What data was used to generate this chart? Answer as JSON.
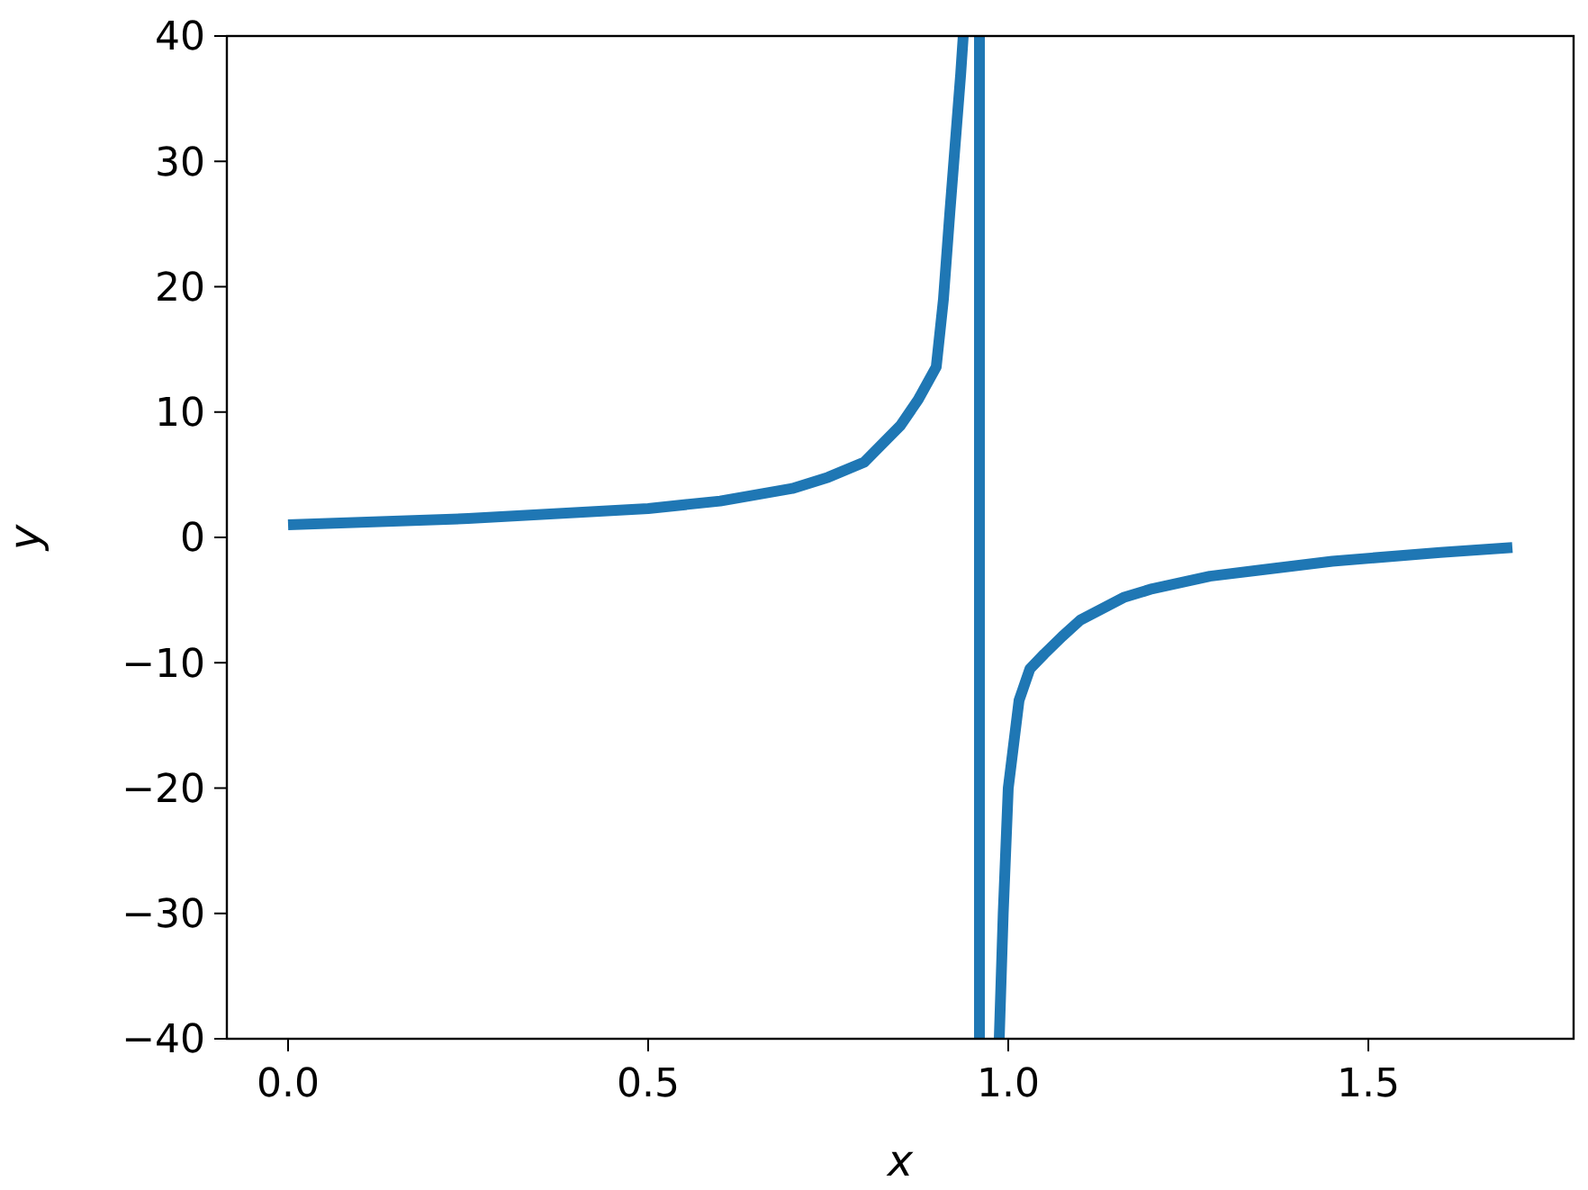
{
  "chart_data": {
    "type": "line",
    "xlabel": "x",
    "ylabel": "y",
    "x": [
      0,
      0.25,
      0.5,
      0.6,
      0.7,
      0.75,
      0.8,
      0.85,
      0.875,
      0.9,
      0.91,
      0.919,
      0.934,
      0.9375,
      0.95,
      0.96,
      0.96,
      0.97,
      0.9875,
      0.993,
      1.0,
      1.015,
      1.03,
      1.05,
      1.075,
      1.1,
      1.16,
      1.2,
      1.28,
      1.35,
      1.45,
      1.6,
      1.7
    ],
    "series": [
      {
        "color": "#1f77b4",
        "values": [
          1,
          1.5,
          2.3,
          2.9,
          3.9,
          4.8,
          6.0,
          8.9,
          11,
          13.6,
          19,
          26,
          37,
          40,
          null,
          40,
          -40,
          null,
          -40,
          -30,
          -20,
          -13,
          -10.5,
          -9.3,
          -7.9,
          -6.6,
          -4.8,
          -4.1,
          -3.1,
          -2.6,
          -1.9,
          -1.2,
          -0.8
        ]
      }
    ],
    "xlim": [
      -0.085,
      1.785
    ],
    "xticks": [
      {
        "value": 0,
        "label": "0.0"
      },
      {
        "value": 0.5,
        "label": "0.5"
      },
      {
        "value": 1,
        "label": "1.0"
      },
      {
        "value": 1.5,
        "label": "1.5"
      }
    ],
    "ylim": [
      -40,
      40
    ],
    "yticks": [
      {
        "value": -40,
        "label": "−40"
      },
      {
        "value": -30,
        "label": "−30"
      },
      {
        "value": -20,
        "label": "−20"
      },
      {
        "value": -10,
        "label": "−10"
      },
      {
        "value": 0,
        "label": "0"
      },
      {
        "value": 10,
        "label": "10"
      },
      {
        "value": 20,
        "label": "20"
      },
      {
        "value": 30,
        "label": "30"
      },
      {
        "value": 40,
        "label": "40"
      }
    ],
    "grid": false,
    "line_style": "solid",
    "marker": "none"
  }
}
